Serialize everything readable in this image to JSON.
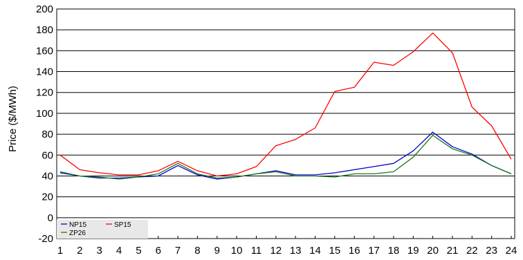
{
  "chart_data": {
    "type": "line",
    "ylabel": "Price ($/MWh)",
    "xlabel": "",
    "x": [
      1,
      2,
      3,
      4,
      5,
      6,
      7,
      8,
      9,
      10,
      11,
      12,
      13,
      14,
      15,
      16,
      17,
      18,
      19,
      20,
      21,
      22,
      23,
      24
    ],
    "ylim": [
      -20,
      200
    ],
    "yticks": [
      -20,
      0,
      20,
      40,
      60,
      80,
      100,
      120,
      140,
      160,
      180,
      200
    ],
    "grid": "horizontal",
    "legend": "bottom-left",
    "series": [
      {
        "name": "NP15",
        "color": "#0000cc",
        "values": [
          43,
          40,
          38,
          38,
          39,
          40,
          50,
          41,
          37,
          39,
          42,
          45,
          41,
          41,
          43,
          46,
          49,
          52,
          64,
          82,
          68,
          61,
          50,
          42
        ]
      },
      {
        "name": "SP15",
        "color": "#ff0000",
        "values": [
          60,
          46,
          43,
          41,
          41,
          45,
          54,
          45,
          40,
          42,
          49,
          69,
          75,
          86,
          121,
          125,
          149,
          146,
          159,
          177,
          158,
          106,
          88,
          56
        ]
      },
      {
        "name": "ZP26",
        "color": "#1a7a1a",
        "values": [
          44,
          40,
          39,
          37,
          39,
          42,
          52,
          42,
          38,
          39,
          42,
          44,
          40,
          40,
          39,
          42,
          42,
          44,
          58,
          79,
          66,
          60,
          50,
          42
        ]
      }
    ]
  }
}
